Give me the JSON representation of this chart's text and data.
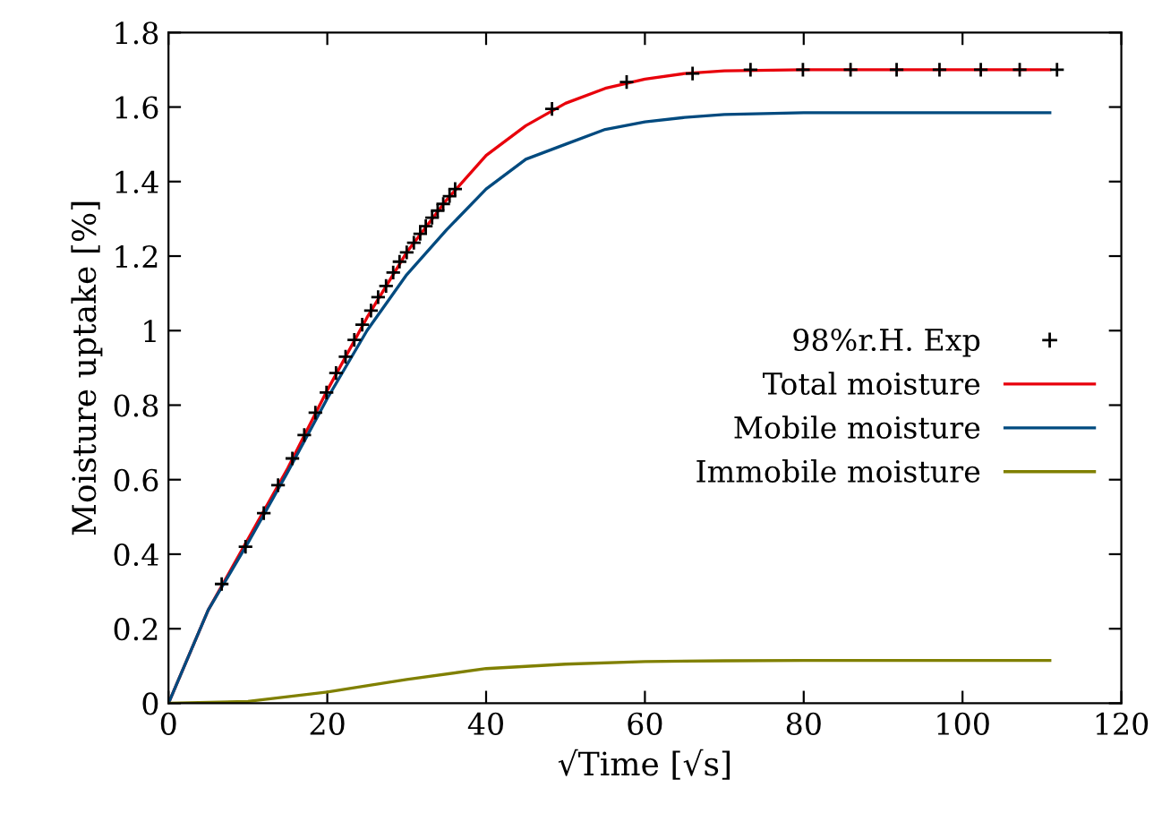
{
  "chart_data": {
    "type": "line",
    "xlabel": "√Time [√s]",
    "ylabel": "Moisture uptake [%]",
    "xlim": [
      0,
      120
    ],
    "ylim": [
      0,
      1.8
    ],
    "xticks": [
      0,
      20,
      40,
      60,
      80,
      100,
      120
    ],
    "yticks": [
      0,
      0.2,
      0.4,
      0.6,
      0.8,
      1,
      1.2,
      1.4,
      1.6,
      1.8
    ],
    "grid": false,
    "legend": "right",
    "marker": "none",
    "line_style": "solid",
    "series": [
      {
        "name": "98%r.H. Exp",
        "type": "scatter",
        "marker": "cross",
        "color": "#000000",
        "x": [
          6.7,
          9.7,
          12.0,
          13.8,
          15.6,
          17.1,
          18.5,
          19.9,
          21.1,
          22.3,
          23.4,
          24.4,
          25.5,
          26.4,
          27.4,
          28.3,
          29.1,
          30.0,
          30.9,
          31.7,
          32.4,
          33.2,
          33.9,
          34.6,
          35.4,
          36.1,
          48.3,
          57.7,
          66.0,
          73.3,
          79.9,
          85.9,
          91.7,
          97.1,
          102.3,
          107.2,
          111.9
        ],
        "values": [
          0.32,
          0.42,
          0.51,
          0.585,
          0.657,
          0.72,
          0.78,
          0.834,
          0.886,
          0.93,
          0.975,
          1.016,
          1.054,
          1.09,
          1.12,
          1.156,
          1.185,
          1.21,
          1.236,
          1.26,
          1.28,
          1.303,
          1.322,
          1.34,
          1.361,
          1.38,
          1.595,
          1.667,
          1.69,
          1.7,
          1.7,
          1.7,
          1.7,
          1.7,
          1.7,
          1.7,
          1.7
        ]
      },
      {
        "name": "Total moisture",
        "color": "#e8000b",
        "x": [
          0,
          5,
          10,
          15,
          20,
          25,
          30,
          35,
          40,
          45,
          50,
          55,
          60,
          65,
          70,
          80,
          90,
          100,
          111
        ],
        "values": [
          0,
          0.25,
          0.44,
          0.63,
          0.84,
          1.035,
          1.21,
          1.35,
          1.47,
          1.55,
          1.61,
          1.65,
          1.675,
          1.69,
          1.697,
          1.7,
          1.7,
          1.7,
          1.7
        ]
      },
      {
        "name": "Mobile moisture",
        "color": "#004a7f",
        "x": [
          0,
          5,
          10,
          15,
          20,
          25,
          30,
          35,
          40,
          45,
          50,
          55,
          60,
          65,
          70,
          80,
          90,
          100,
          111
        ],
        "values": [
          0,
          0.25,
          0.43,
          0.62,
          0.818,
          1.0,
          1.15,
          1.27,
          1.38,
          1.46,
          1.5,
          1.54,
          1.56,
          1.572,
          1.58,
          1.585,
          1.585,
          1.585,
          1.585
        ]
      },
      {
        "name": "Immobile moisture",
        "color": "#808000",
        "x": [
          0,
          10,
          20,
          30,
          40,
          50,
          60,
          70,
          80,
          90,
          100,
          111
        ],
        "values": [
          0,
          0.005,
          0.03,
          0.064,
          0.093,
          0.105,
          0.112,
          0.114,
          0.115,
          0.115,
          0.115,
          0.115
        ]
      }
    ]
  }
}
